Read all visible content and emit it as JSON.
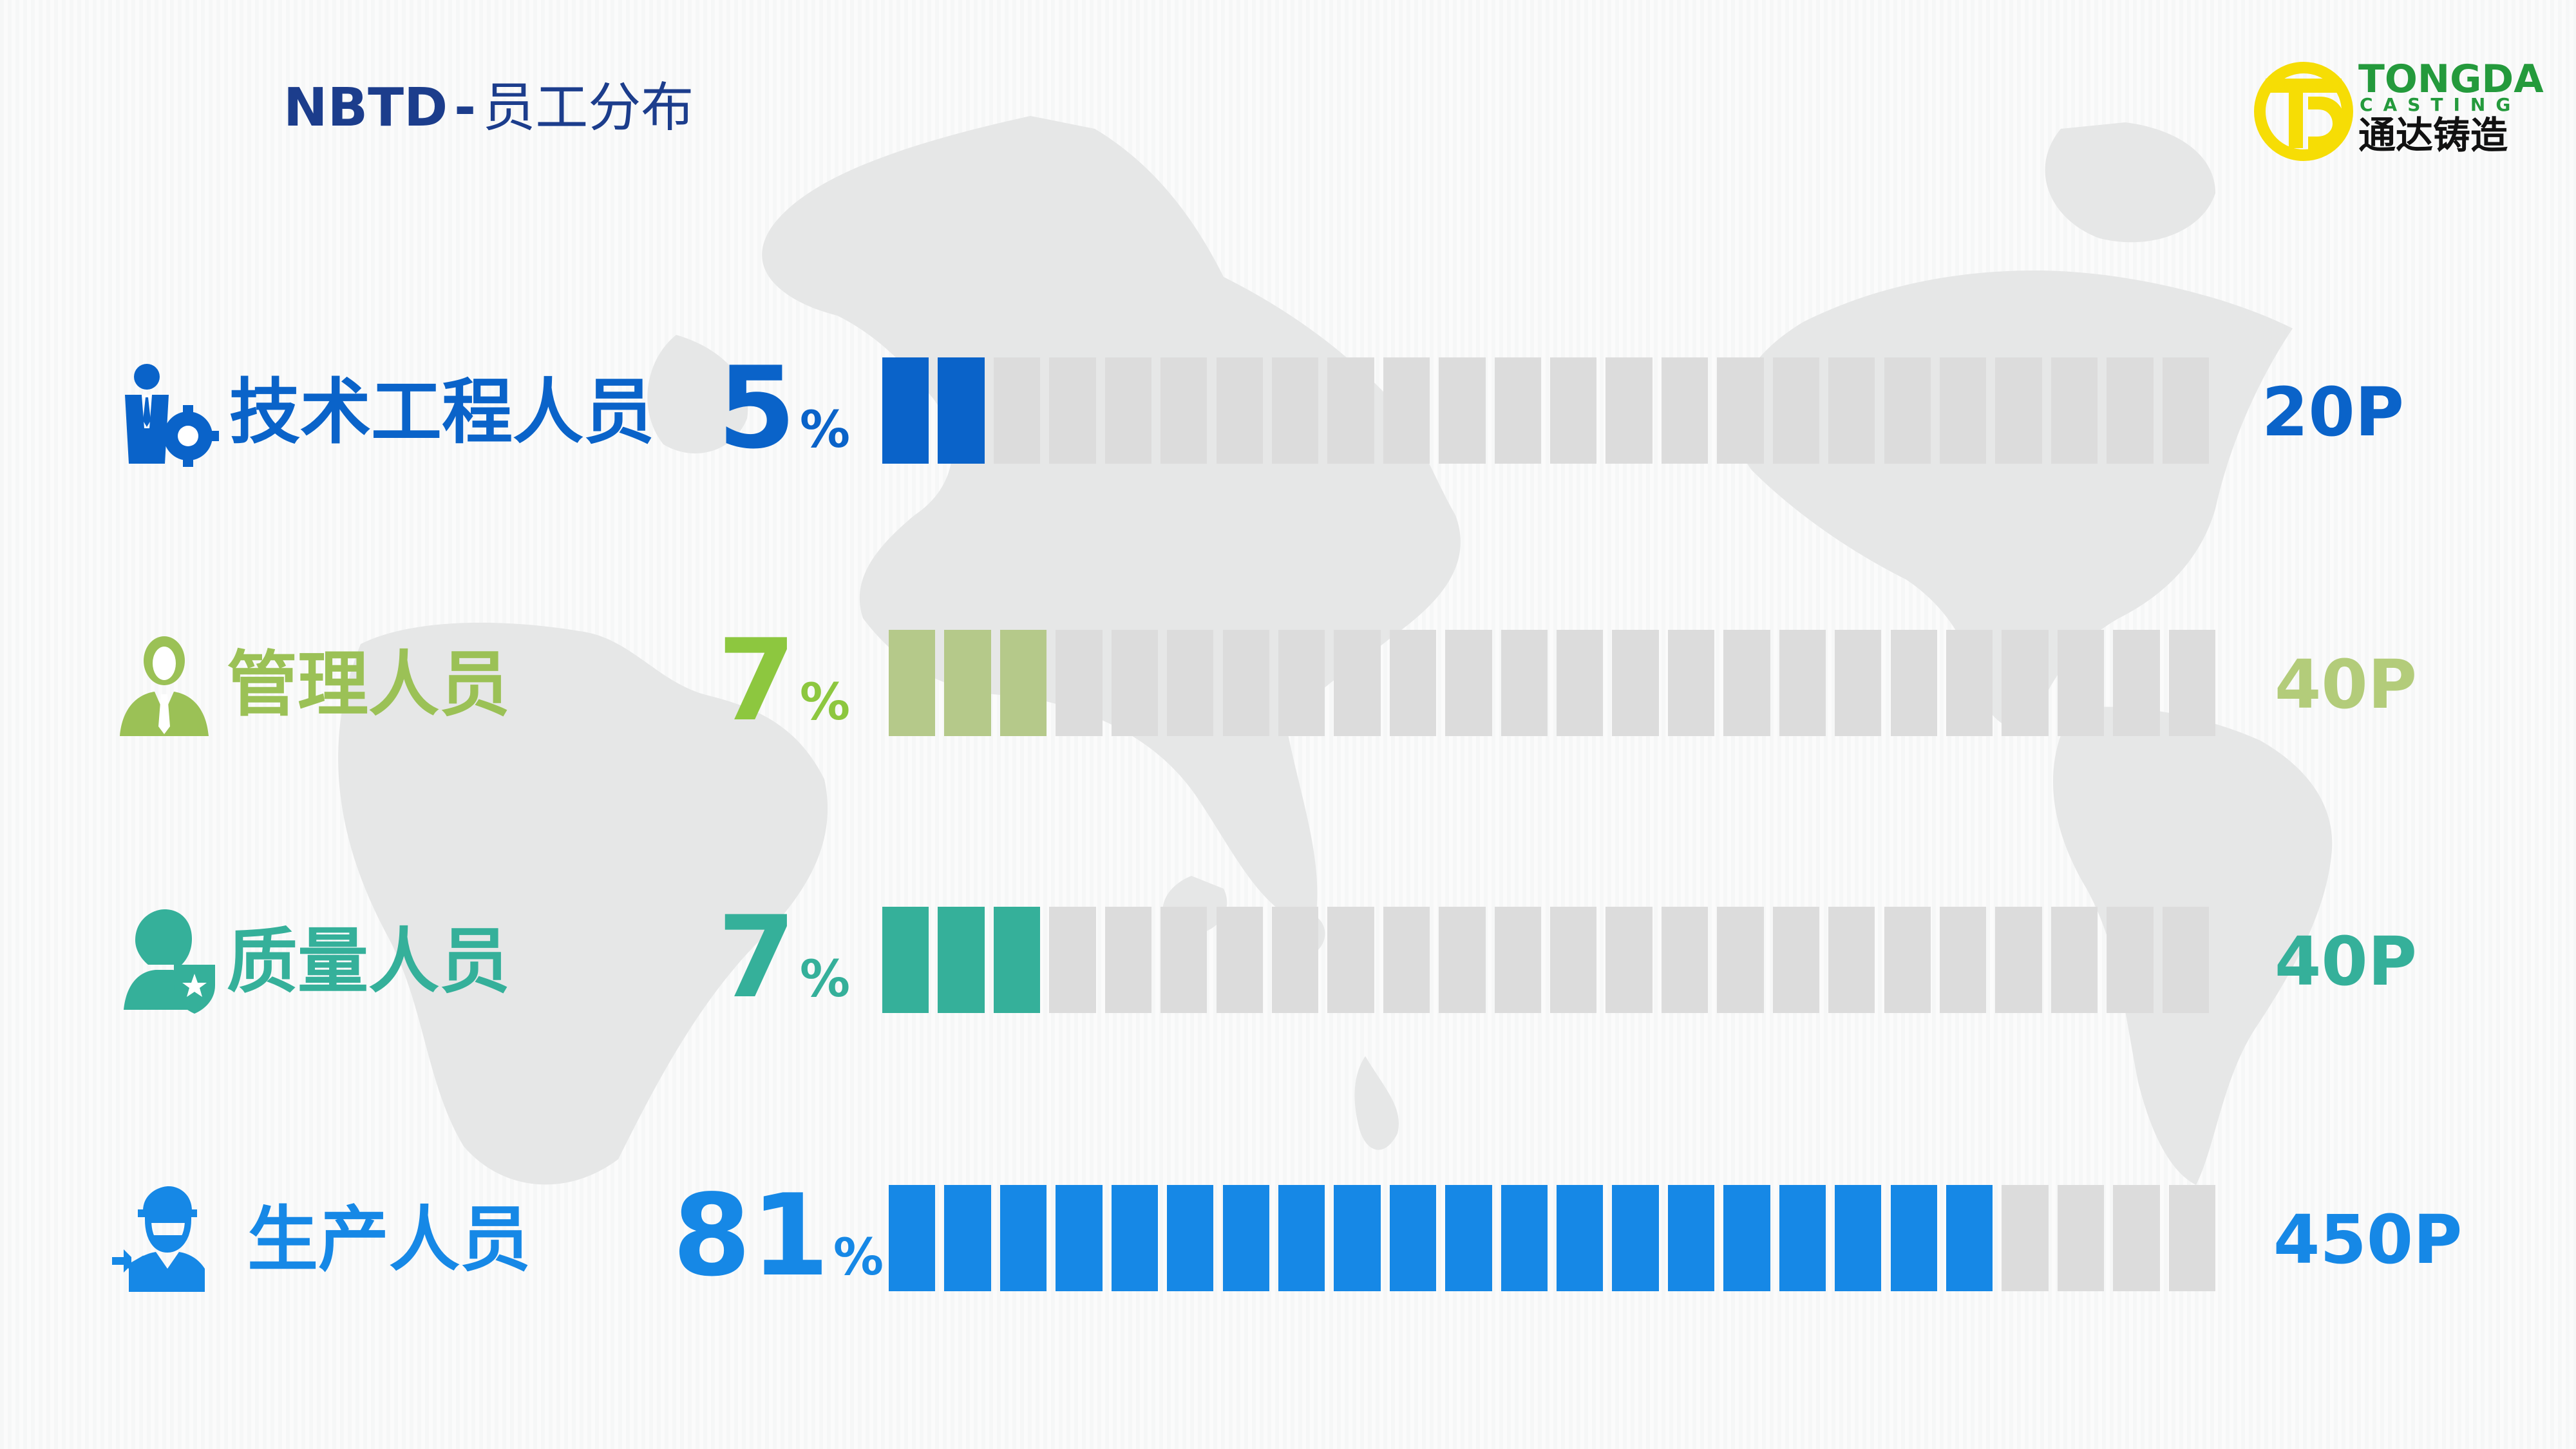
{
  "header": {
    "brand": "NBTD",
    "separator": "-",
    "title": "员工分布"
  },
  "logo": {
    "name_en": "TONGDA",
    "name_en_sub": "CASTING",
    "name_cn": "通达铸造"
  },
  "colors": {
    "navy": "#1c3d8c",
    "tech": "#0a63c9",
    "management": "#9bc156",
    "quality": "#35b09a",
    "production": "#1688e6",
    "empty_cell": "#dcdcdc",
    "logo_yellow": "#f6dd05",
    "logo_green": "#249a3c"
  },
  "chart_data": {
    "type": "bar",
    "categories": [
      "技术工程人员",
      "管理人员",
      "质量人员",
      "生产人员"
    ],
    "values": [
      5,
      7,
      7,
      81
    ],
    "value_unit": "%",
    "counts": [
      "20P",
      "40P",
      "40P",
      "450P"
    ],
    "xlim": [
      0,
      100
    ],
    "segments_total": 24,
    "segments_filled": [
      2,
      3,
      3,
      20
    ],
    "grid": false,
    "legend": "none"
  },
  "rows": [
    {
      "label": "技术工程人员",
      "value": "5",
      "unit": "%",
      "count": "20P",
      "icon": "engineer-gear-icon",
      "color": "#0a63c9",
      "label_color": "#0a63c9",
      "count_color": "#0a63c9",
      "filled": 2
    },
    {
      "label": "管理人员",
      "value": "7",
      "unit": "%",
      "count": "40P",
      "icon": "manager-icon",
      "color": "#b5c98a",
      "label_color": "#9bc156",
      "count_color": "#b3cc7a",
      "filled": 3
    },
    {
      "label": "质量人员",
      "value": "7",
      "unit": "%",
      "count": "40P",
      "icon": "quality-shield-icon",
      "color": "#35b09a",
      "label_color": "#35b09a",
      "count_color": "#35b09a",
      "filled": 3
    },
    {
      "label": "生产人员",
      "value": "81",
      "unit": "%",
      "count": "450P",
      "icon": "worker-wrench-icon",
      "color": "#1688e6",
      "label_color": "#1688e6",
      "count_color": "#1688e6",
      "filled": 20
    }
  ]
}
